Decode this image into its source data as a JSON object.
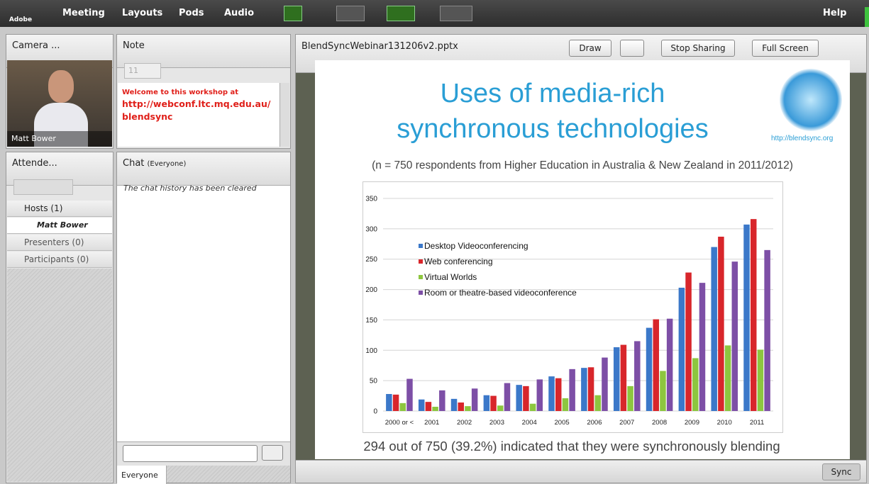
{
  "toolbar": {
    "logo": "Adobe",
    "menus": [
      "Meeting",
      "Layouts",
      "Pods",
      "Audio"
    ],
    "help": "Help"
  },
  "camera_pod": {
    "title": "Camera ...",
    "name": "Matt Bower"
  },
  "note_pod": {
    "title": "Note",
    "font_size": 11,
    "text": [
      "Welcome to this workshop at",
      "http://webconf.ltc.mq.edu.au/",
      "blendsync"
    ]
  },
  "attendees_pod": {
    "title": "Attende...",
    "groups": [
      {
        "label": "Hosts (1)",
        "members": [
          "Matt Bower"
        ]
      },
      {
        "label": "Presenters (0)"
      },
      {
        "label": "Participants (0)"
      }
    ]
  },
  "chat_pod": {
    "title": "Chat",
    "scope": "(Everyone)",
    "message": "The chat history has been cleared",
    "tab": "Everyone"
  },
  "share_pod": {
    "filename": "BlendSyncWebinar131206v2.pptx",
    "buttons": [
      "Draw",
      "Stop Sharing",
      "Full Screen"
    ],
    "sync": "Sync"
  },
  "slide": {
    "title": [
      "Uses of media-rich",
      "synchronous technologies"
    ],
    "logo_url": "http://blendsync.org",
    "subtitle": "(n = 750 respondents from Higher Education in Australia & New Zealand in 2011/2012)",
    "footer": "294 out of 750 (39.2%) indicated that they were synchronously blending"
  },
  "chart_data": {
    "type": "bar",
    "categories": [
      "2000 or <",
      "2001",
      "2002",
      "2003",
      "2004",
      "2005",
      "2006",
      "2007",
      "2008",
      "2009",
      "2010",
      "2011"
    ],
    "series": [
      {
        "name": "Desktop Videoconferencing",
        "color": "#3b78c9",
        "values": [
          28,
          19,
          20,
          26,
          43,
          57,
          71,
          105,
          137,
          203,
          270,
          307
        ]
      },
      {
        "name": "Web conferencing",
        "color": "#d8262b",
        "values": [
          27,
          15,
          14,
          25,
          41,
          54,
          72,
          109,
          151,
          228,
          287,
          316
        ]
      },
      {
        "name": "Virtual Worlds",
        "color": "#8dc63f",
        "values": [
          13,
          7,
          8,
          9,
          12,
          21,
          26,
          41,
          66,
          87,
          108,
          101
        ]
      },
      {
        "name": "Room or theatre-based videoconference",
        "color": "#7d4fa6",
        "values": [
          53,
          34,
          37,
          46,
          52,
          69,
          88,
          115,
          152,
          211,
          246,
          265
        ]
      }
    ],
    "ylim": [
      0,
      350
    ],
    "yticks": [
      0,
      50,
      100,
      150,
      200,
      250,
      300,
      350
    ],
    "grid": true,
    "legend": "upper left"
  }
}
